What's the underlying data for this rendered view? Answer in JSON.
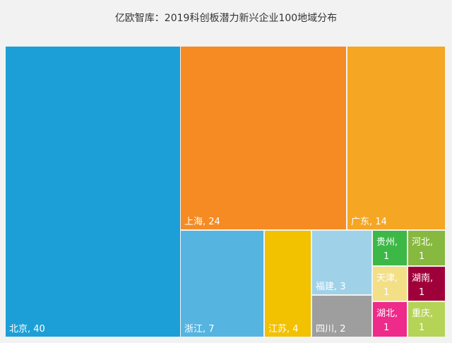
{
  "chart_data": {
    "type": "treemap",
    "title": "亿欧智库：2019科创板潜力新兴企业100地域分布",
    "items": [
      {
        "name": "北京",
        "value": 40,
        "label": "北京, 40",
        "color": "#1c9fd6"
      },
      {
        "name": "上海",
        "value": 24,
        "label": "上海, 24",
        "color": "#f58b22"
      },
      {
        "name": "广东",
        "value": 14,
        "label": "广东, 14",
        "color": "#f5a623"
      },
      {
        "name": "浙江",
        "value": 7,
        "label": "浙江, 7",
        "color": "#55b4e0"
      },
      {
        "name": "江苏",
        "value": 4,
        "label": "江苏, 4",
        "color": "#f2c100"
      },
      {
        "name": "福建",
        "value": 3,
        "label": "福建, 3",
        "color": "#9fd2e8"
      },
      {
        "name": "四川",
        "value": 2,
        "label": "四川, 2",
        "color": "#9e9e9e"
      },
      {
        "name": "贵州",
        "value": 1,
        "label": [
          "贵州,",
          "1"
        ],
        "color": "#3cb846"
      },
      {
        "name": "河北",
        "value": 1,
        "label": [
          "河北,",
          "1"
        ],
        "color": "#87b83f"
      },
      {
        "name": "天津",
        "value": 1,
        "label": [
          "天津,",
          "1"
        ],
        "color": "#f3df86"
      },
      {
        "name": "湖南",
        "value": 1,
        "label": [
          "湖南,",
          "1"
        ],
        "color": "#a0003a"
      },
      {
        "name": "湖北",
        "value": 1,
        "label": [
          "湖北,",
          "1"
        ],
        "color": "#ee2a8a"
      },
      {
        "name": "重庆",
        "value": 1,
        "label": [
          "重庆,",
          "1"
        ],
        "color": "#b5d356"
      }
    ]
  }
}
